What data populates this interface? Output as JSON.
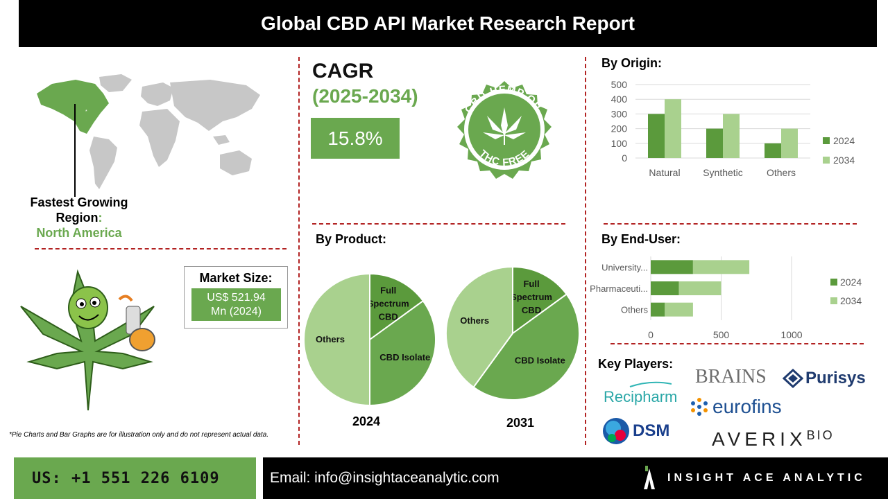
{
  "title": "Global CBD API Market Research Report",
  "region": {
    "label_line1": "Fastest Growing",
    "label_line2": "Region",
    "colon": ":",
    "value": "North America"
  },
  "cagr": {
    "label": "CAGR",
    "period": "(2025-2034)",
    "value": "15.8%"
  },
  "badge": {
    "top_text": "CBD HEMP OIL",
    "bottom_text": "THC FREE"
  },
  "market_size": {
    "label": "Market Size:",
    "value_line1": "US$ 521.94",
    "value_line2": "Mn (2024)"
  },
  "origin": {
    "heading": "By Origin:"
  },
  "product": {
    "heading": "By Product:"
  },
  "end_user": {
    "heading": "By End-User:"
  },
  "key_players": {
    "heading": "Key Players:",
    "logos": [
      "BRAINS",
      "Purisys",
      "Recipharm",
      "eurofins",
      "DSM",
      "AVERIX",
      "BIO"
    ]
  },
  "disclaimer": "*Pie Charts and Bar Graphs are for illustration only and do not represent actual data.",
  "footer": {
    "phone": "US: +1 551 226 6109",
    "email": "Email: info@insightaceanalytic.com",
    "brand": "INSIGHT ACE ANALYTIC"
  },
  "colors": {
    "dark_green": "#5b9a3c",
    "mid_green": "#6aa84f",
    "light_green": "#a9d18e",
    "accent_red": "#b22222"
  },
  "chart_data": [
    {
      "type": "bar",
      "title": "By Origin:",
      "categories": [
        "Natural",
        "Synthetic",
        "Others"
      ],
      "series": [
        {
          "name": "2024",
          "values": [
            300,
            200,
            100
          ]
        },
        {
          "name": "2034",
          "values": [
            400,
            300,
            200
          ]
        }
      ],
      "ylim": [
        0,
        500
      ],
      "yticks": [
        "0",
        "100",
        "200",
        "300",
        "400",
        "500"
      ],
      "grid": true,
      "legend": "right"
    },
    {
      "type": "pie",
      "title": "By Product:",
      "year": "2024",
      "labels": [
        "Full Spectrum CBD",
        "CBD Isolate",
        "Others"
      ],
      "values": [
        15,
        35,
        50
      ]
    },
    {
      "type": "pie",
      "title": "By Product:",
      "year": "2031",
      "labels": [
        "Full Spectrum CBD",
        "CBD Isolate",
        "Others"
      ],
      "values": [
        15,
        45,
        40
      ]
    },
    {
      "type": "bar",
      "orientation": "horizontal",
      "stacked": true,
      "title": "By End-User:",
      "categories": [
        "University...",
        "Pharmaceuti...",
        "Others"
      ],
      "series": [
        {
          "name": "2024",
          "values": [
            300,
            200,
            100
          ]
        },
        {
          "name": "2034",
          "values": [
            400,
            300,
            200
          ]
        }
      ],
      "xlim": [
        0,
        1000
      ],
      "xticks": [
        "0",
        "500",
        "1000"
      ],
      "grid": true,
      "legend": "right"
    }
  ]
}
